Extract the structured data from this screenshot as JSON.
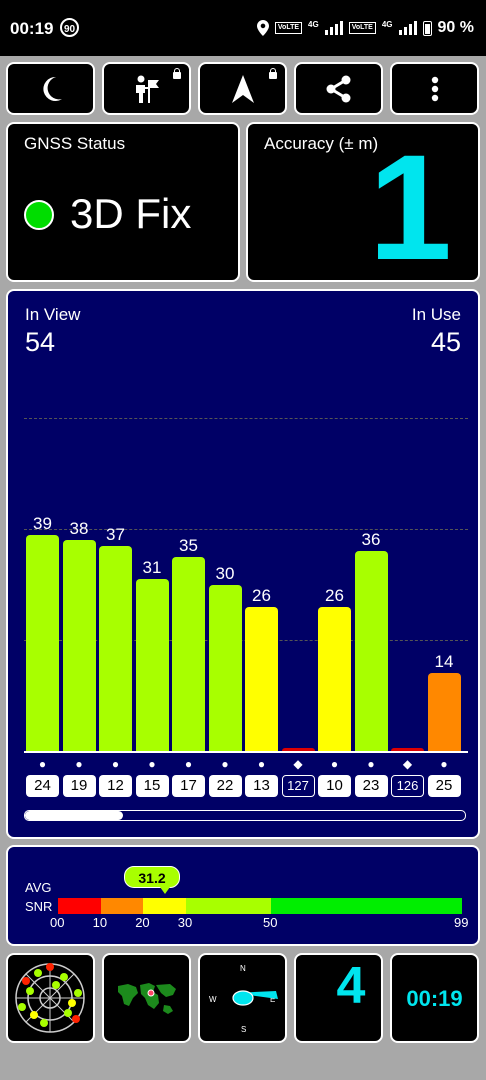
{
  "status_bar": {
    "time": "00:19",
    "refresh_badge": "90",
    "volte1": "VoLTE",
    "net1": "4G",
    "volte2": "VoLTE",
    "net2": "4G",
    "battery": "90 %"
  },
  "toolbar": {
    "buttons": [
      {
        "icon": "moon-icon"
      },
      {
        "icon": "person-flag-icon",
        "locked": true
      },
      {
        "icon": "navigation-arrow-icon",
        "locked": true
      },
      {
        "icon": "share-icon"
      },
      {
        "icon": "more-vert-icon"
      }
    ]
  },
  "gnss": {
    "title": "GNSS Status",
    "status": "3D Fix",
    "status_color": "#00dd00"
  },
  "accuracy": {
    "title": "Accuracy (± m)",
    "value": "1",
    "color": "#00e5ee"
  },
  "signal": {
    "in_view_label": "In View",
    "in_view": "54",
    "in_use_label": "In Use",
    "in_use": "45"
  },
  "chart_data": {
    "type": "bar",
    "categories": [
      "24",
      "19",
      "12",
      "15",
      "17",
      "22",
      "13",
      "127",
      "10",
      "23",
      "126",
      "25"
    ],
    "values": [
      39,
      38,
      37,
      31,
      35,
      30,
      26,
      0,
      26,
      36,
      0,
      14
    ],
    "value_labels": [
      "39",
      "38",
      "37",
      "31",
      "35",
      "30",
      "26",
      "",
      "26",
      "36",
      "",
      "14"
    ],
    "colors": [
      "#a8ff00",
      "#a8ff00",
      "#a8ff00",
      "#a8ff00",
      "#a8ff00",
      "#a8ff00",
      "#ffff00",
      "#dd0000",
      "#ffff00",
      "#a8ff00",
      "#dd0000",
      "#ff8800"
    ],
    "symbols": [
      "●",
      "●",
      "●",
      "●",
      "●",
      "●",
      "●",
      "◆",
      "●",
      "●",
      "◆",
      "●"
    ],
    "outlined_prns": [
      "127",
      "126"
    ],
    "ylim": [
      0,
      60
    ],
    "grid": true
  },
  "snr": {
    "avg_label": "AVG",
    "snr_label": "SNR",
    "avg_value": "31.2",
    "ticks": [
      "00",
      "10",
      "20",
      "30",
      "50",
      "99"
    ],
    "segments": [
      {
        "from": 0,
        "to": 10,
        "color": "#ff0000"
      },
      {
        "from": 10,
        "to": 20,
        "color": "#ff8800"
      },
      {
        "from": 20,
        "to": 30,
        "color": "#ffff00"
      },
      {
        "from": 30,
        "to": 50,
        "color": "#a8ff00"
      },
      {
        "from": 50,
        "to": 99,
        "color": "#00ee00"
      }
    ]
  },
  "bottom": {
    "satellites_used": "4",
    "clock": "00:19",
    "compass": {
      "n": "N",
      "e": "E",
      "s": "S",
      "w": "W"
    }
  }
}
